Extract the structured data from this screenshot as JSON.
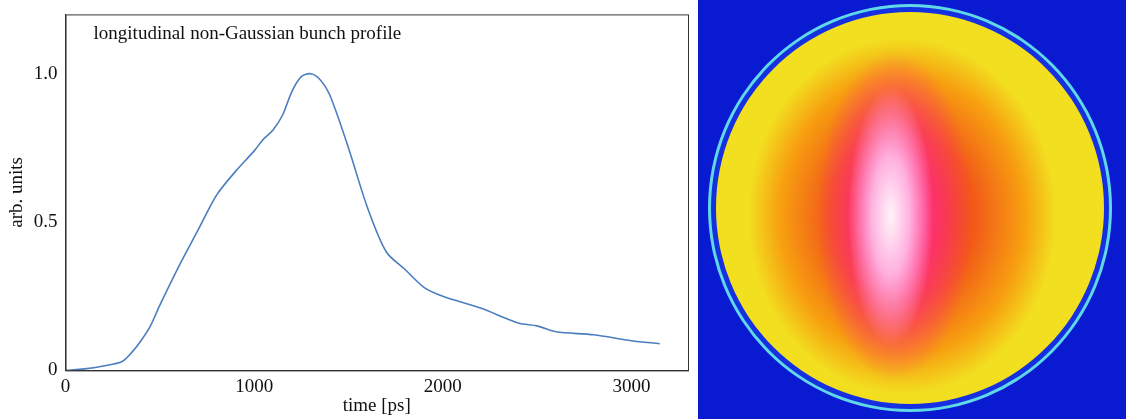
{
  "chart_data": {
    "type": "line",
    "title": "longitudinal non-Gaussian bunch profile",
    "x_label": "time [ps]",
    "y_label": "arb. units",
    "x": [
      0,
      100,
      200,
      300,
      350,
      400,
      450,
      500,
      600,
      700,
      800,
      900,
      1000,
      1050,
      1100,
      1150,
      1200,
      1250,
      1300,
      1350,
      1400,
      1500,
      1600,
      1700,
      1800,
      1900,
      2000,
      2200,
      2400,
      2500,
      2600,
      2800,
      3000,
      3150
    ],
    "values": [
      0,
      0.005,
      0.015,
      0.03,
      0.06,
      0.1,
      0.15,
      0.22,
      0.35,
      0.47,
      0.59,
      0.67,
      0.74,
      0.78,
      0.81,
      0.86,
      0.94,
      0.99,
      1.0,
      0.98,
      0.93,
      0.75,
      0.55,
      0.4,
      0.34,
      0.28,
      0.25,
      0.21,
      0.16,
      0.15,
      0.13,
      0.12,
      0.1,
      0.09
    ],
    "color": "#4a7ebf",
    "xlim": [
      0,
      3300
    ],
    "xticks": [
      0,
      1000,
      2000,
      3000
    ],
    "ylim": [
      0,
      1.2
    ],
    "yticks": [
      0,
      0.5,
      {
        "value": 1,
        "label": "1.0"
      }
    ],
    "grid": false
  }
}
